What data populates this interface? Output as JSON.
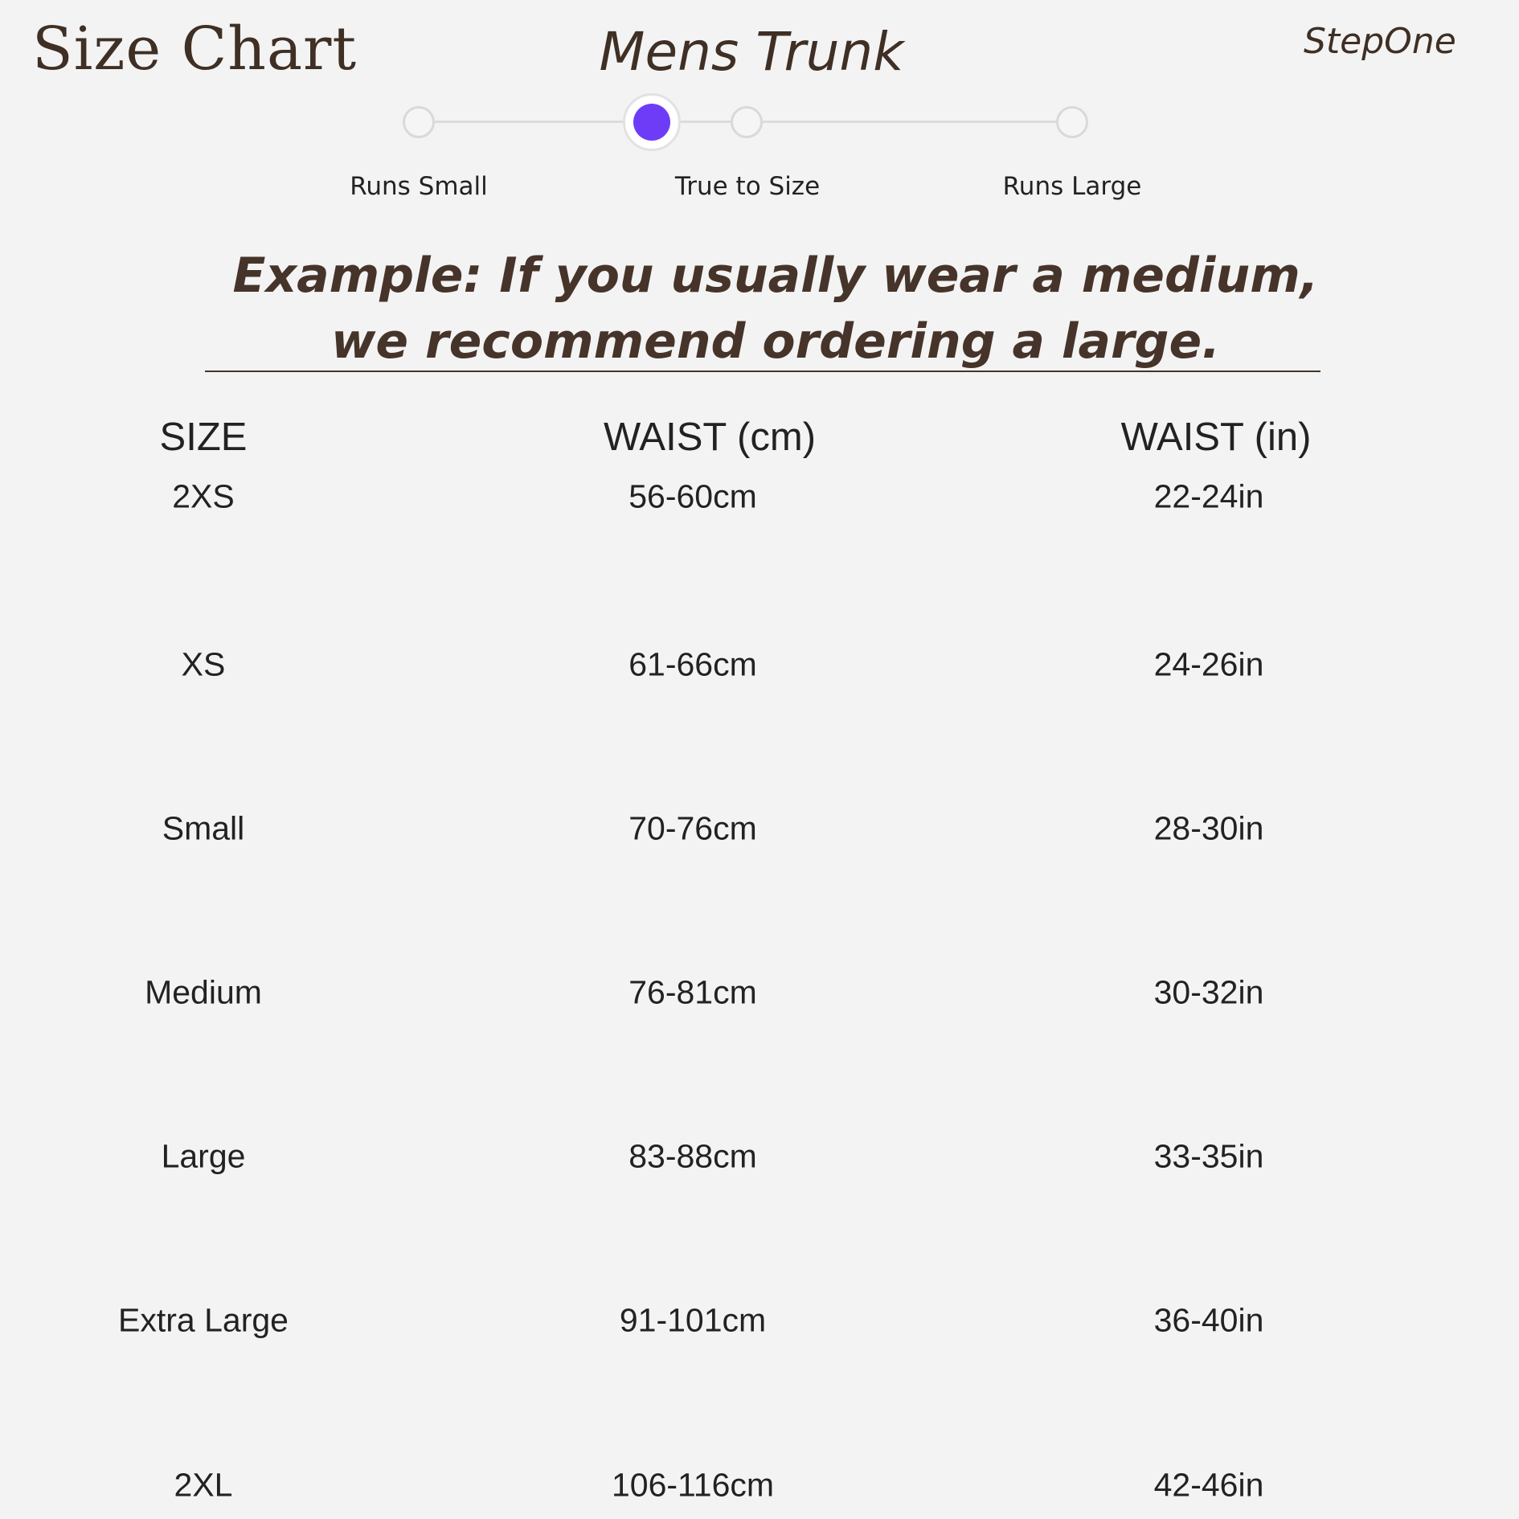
{
  "header": {
    "title": "Size Chart",
    "product": "Mens Trunk",
    "brand": "StepOne"
  },
  "fit_scale": {
    "labels": [
      "Runs Small",
      "True to Size",
      "Runs Large"
    ],
    "selected": "True to Size",
    "accent_color": "#6e3cf6"
  },
  "example": "Example: If you usually wear a medium, we recommend ordering a large.",
  "table": {
    "headers": [
      "SIZE",
      "WAIST (cm)",
      "WAIST (in)"
    ],
    "rows": [
      [
        "2XS",
        "56-60cm",
        "22-24in"
      ],
      [
        "XS",
        "61-66cm",
        "24-26in"
      ],
      [
        "Small",
        "70-76cm",
        "28-30in"
      ],
      [
        "Medium",
        "76-81cm",
        "30-32in"
      ],
      [
        "Large",
        "83-88cm",
        "33-35in"
      ],
      [
        "Extra Large",
        "91-101cm",
        "36-40in"
      ],
      [
        "2XL",
        "106-116cm",
        "42-46in"
      ]
    ]
  }
}
